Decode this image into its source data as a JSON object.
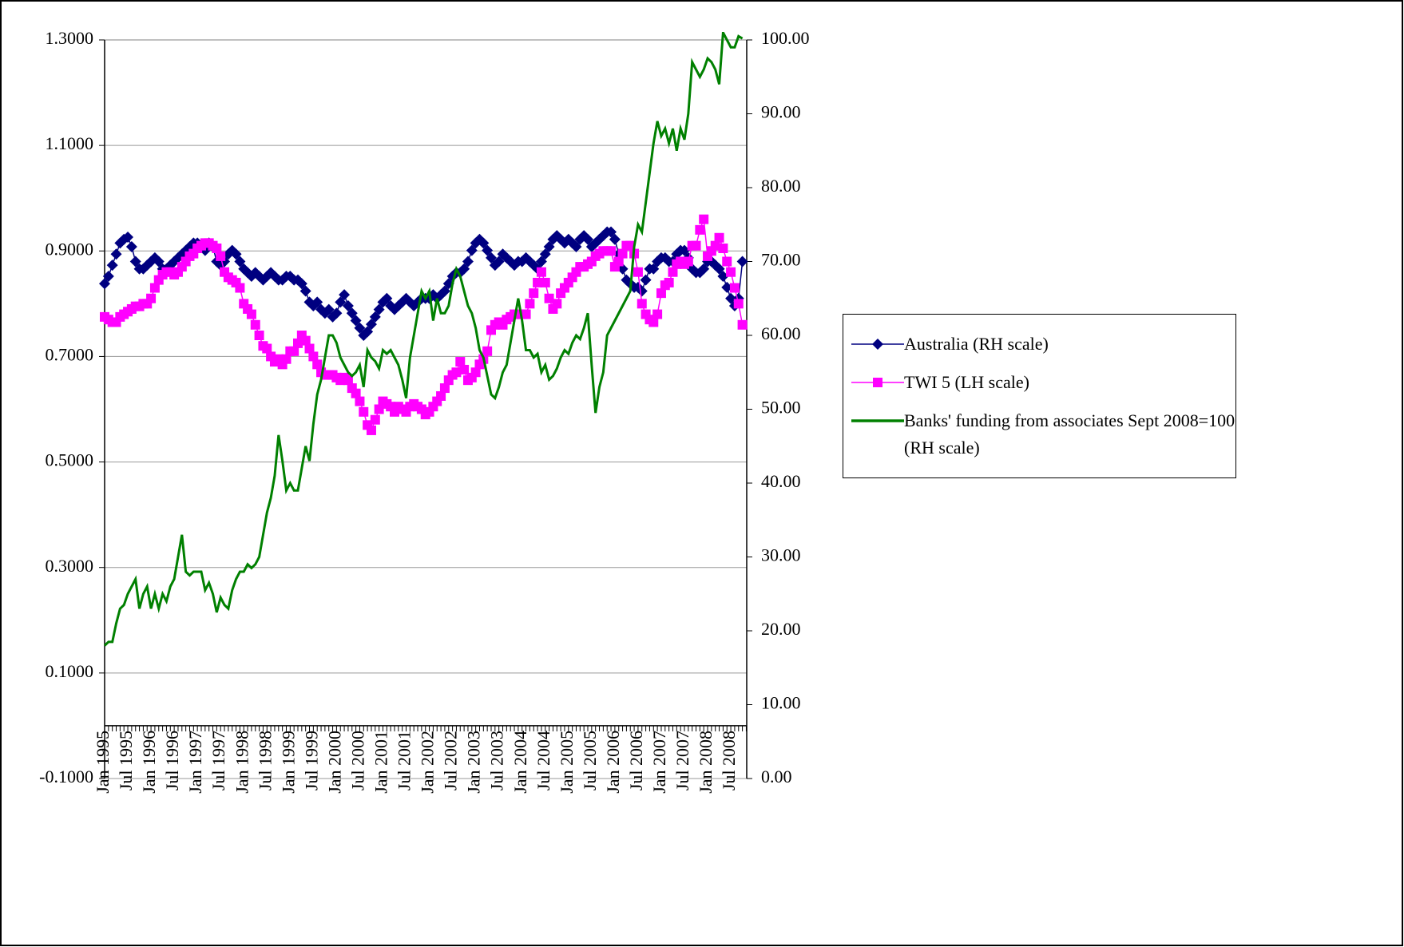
{
  "chart_data": {
    "type": "line",
    "categories": [
      "Jan 1995",
      null,
      null,
      null,
      null,
      null,
      "Jul 1995",
      null,
      null,
      null,
      null,
      null,
      "Jan 1996",
      null,
      null,
      null,
      null,
      null,
      "Jul 1996",
      null,
      null,
      null,
      null,
      null,
      "Jan 1997",
      null,
      null,
      null,
      null,
      null,
      "Jul 1997",
      null,
      null,
      null,
      null,
      null,
      "Jan 1998",
      null,
      null,
      null,
      null,
      null,
      "Jul 1998",
      null,
      null,
      null,
      null,
      null,
      "Jan 1999",
      null,
      null,
      null,
      null,
      null,
      "Jul 1999",
      null,
      null,
      null,
      null,
      null,
      "Jan 2000",
      null,
      null,
      null,
      null,
      null,
      "Jul 2000",
      null,
      null,
      null,
      null,
      null,
      "Jan 2001",
      null,
      null,
      null,
      null,
      null,
      "Jul 2001",
      null,
      null,
      null,
      null,
      null,
      "Jan 2002",
      null,
      null,
      null,
      null,
      null,
      "Jul 2002",
      null,
      null,
      null,
      null,
      null,
      "Jan 2003",
      null,
      null,
      null,
      null,
      null,
      "Jul 2003",
      null,
      null,
      null,
      null,
      null,
      "Jan 2004",
      null,
      null,
      null,
      null,
      null,
      "Jul 2004",
      null,
      null,
      null,
      null,
      null,
      "Jan 2005",
      null,
      null,
      null,
      null,
      null,
      "Jul 2005",
      null,
      null,
      null,
      null,
      null,
      "Jan 2006",
      null,
      null,
      null,
      null,
      null,
      "Jul 2006",
      null,
      null,
      null,
      null,
      null,
      "Jan 2007",
      null,
      null,
      null,
      null,
      null,
      "Jul 2007",
      null,
      null,
      null,
      null,
      null,
      "Jan 2008",
      null,
      null,
      null,
      null,
      null,
      "Jul 2008",
      null,
      null,
      null
    ],
    "series": [
      {
        "name": "Australia (RH scale)",
        "color": "#000080",
        "marker": "diamond",
        "axis": "y2",
        "values": [
          67,
          68,
          69.5,
          71,
          72.5,
          73,
          73.3,
          72,
          70,
          69,
          69,
          69.5,
          70,
          70.5,
          70,
          69,
          69,
          69.5,
          70,
          70.5,
          71,
          71.5,
          72,
          72.5,
          72.5,
          72,
          71.5,
          72.5,
          72,
          70,
          69.5,
          70,
          71,
          71.5,
          71,
          70,
          69,
          68.5,
          68,
          68.5,
          68,
          67.5,
          68,
          68.5,
          68,
          67.5,
          67.5,
          68,
          68,
          67.5,
          67.5,
          67,
          66,
          64.5,
          64,
          64.5,
          63.5,
          63,
          63.5,
          62.5,
          63,
          64.5,
          65.5,
          64,
          63,
          62,
          61,
          60,
          60.5,
          61.5,
          62.5,
          63.5,
          64.5,
          65,
          64,
          63.5,
          64,
          64.5,
          65,
          64.5,
          64,
          64.5,
          65,
          65,
          65,
          65.5,
          65,
          65.5,
          66,
          67,
          68,
          68.5,
          68.5,
          69,
          70,
          71.5,
          72.5,
          73,
          72.5,
          71.5,
          70.5,
          69.5,
          70,
          71,
          70.5,
          70,
          69.5,
          70,
          70,
          70.5,
          70,
          69.5,
          69,
          70,
          71,
          72,
          73,
          73.5,
          73,
          72.5,
          73,
          72.5,
          72,
          73,
          73.5,
          73,
          72,
          72.5,
          73,
          73.5,
          74,
          74,
          73,
          71,
          69,
          67.5,
          67,
          66.5,
          66.5,
          66,
          67.5,
          69,
          69,
          70,
          70.5,
          70.5,
          70,
          70,
          71,
          71.5,
          71.5,
          70.5,
          69,
          68.5,
          68.5,
          69,
          70,
          70,
          69.5,
          69,
          68,
          66.5,
          65,
          64,
          65,
          70
        ]
      },
      {
        "name": "TWI 5 (LH scale)",
        "color": "#ff00ff",
        "marker": "square",
        "values": [
          0.775,
          0.77,
          0.765,
          0.765,
          0.775,
          0.78,
          0.785,
          0.79,
          0.795,
          0.795,
          0.8,
          0.8,
          0.81,
          0.83,
          0.845,
          0.855,
          0.86,
          0.86,
          0.855,
          0.86,
          0.87,
          0.88,
          0.89,
          0.895,
          0.905,
          0.91,
          0.915,
          0.915,
          0.91,
          0.905,
          0.89,
          0.86,
          0.85,
          0.845,
          0.84,
          0.83,
          0.8,
          0.79,
          0.78,
          0.76,
          0.74,
          0.72,
          0.715,
          0.7,
          0.69,
          0.695,
          0.685,
          0.695,
          0.71,
          0.71,
          0.725,
          0.74,
          0.73,
          0.715,
          0.7,
          0.685,
          0.67,
          0.665,
          0.665,
          0.665,
          0.66,
          0.655,
          0.66,
          0.655,
          0.64,
          0.63,
          0.615,
          0.595,
          0.57,
          0.56,
          0.58,
          0.6,
          0.615,
          0.61,
          0.605,
          0.595,
          0.605,
          0.6,
          0.595,
          0.605,
          0.61,
          0.605,
          0.6,
          0.59,
          0.595,
          0.605,
          0.615,
          0.625,
          0.64,
          0.655,
          0.665,
          0.67,
          0.69,
          0.675,
          0.655,
          0.66,
          0.67,
          0.685,
          0.695,
          0.71,
          0.75,
          0.76,
          0.765,
          0.76,
          0.77,
          0.775,
          0.78,
          0.78,
          0.78,
          0.78,
          0.8,
          0.82,
          0.84,
          0.86,
          0.84,
          0.81,
          0.79,
          0.8,
          0.82,
          0.83,
          0.84,
          0.85,
          0.86,
          0.87,
          0.87,
          0.875,
          0.88,
          0.89,
          0.895,
          0.9,
          0.9,
          0.9,
          0.87,
          0.88,
          0.895,
          0.91,
          0.91,
          0.895,
          0.86,
          0.8,
          0.78,
          0.77,
          0.765,
          0.78,
          0.82,
          0.835,
          0.84,
          0.86,
          0.875,
          0.88,
          0.875,
          0.88,
          0.91,
          0.91,
          0.94,
          0.96,
          0.89,
          0.9,
          0.91,
          0.925,
          0.905,
          0.88,
          0.86,
          0.83,
          0.8,
          0.76
        ]
      },
      {
        "name": "Banks' funding from associates Sept 2008=100 (RH scale)",
        "color": "#008000",
        "marker": "none",
        "axis": "y2",
        "values": [
          18,
          18.5,
          18.5,
          21,
          23,
          23.5,
          25,
          26,
          27,
          23,
          25,
          26,
          23,
          25,
          23,
          25,
          24,
          26,
          27,
          30,
          33,
          28,
          27.5,
          28,
          28,
          28,
          25.5,
          26.5,
          25,
          22.5,
          24.5,
          23.5,
          23,
          25.5,
          27,
          28,
          28,
          29,
          28.5,
          29,
          30,
          33,
          36,
          38,
          41,
          46.5,
          43,
          39,
          40,
          39,
          39,
          42,
          45,
          43,
          48,
          52,
          54,
          57,
          60,
          60,
          59,
          57,
          56,
          55,
          54.5,
          55,
          56,
          53,
          58,
          57,
          56.5,
          55.5,
          58,
          57.5,
          58,
          57,
          56,
          54,
          51.5,
          57,
          60,
          63,
          66,
          65,
          66,
          62,
          65,
          63,
          63,
          64,
          67,
          69,
          68,
          66,
          64,
          63,
          61,
          58,
          57,
          54.5,
          52,
          51.5,
          53,
          55,
          56,
          59,
          62,
          65,
          62,
          58,
          58,
          57,
          57.5,
          55,
          56,
          54,
          54.5,
          55.5,
          57,
          58,
          57.5,
          59,
          60,
          59.5,
          61,
          63,
          56,
          49.5,
          53,
          55,
          60,
          61,
          62,
          63,
          64,
          65,
          66,
          72,
          75,
          74,
          78,
          82,
          86,
          89,
          87,
          88,
          86,
          88,
          85,
          88,
          86.5,
          90,
          97,
          96,
          95,
          96,
          97.5,
          97,
          96,
          94,
          101,
          100,
          99,
          99,
          100.5,
          100.2
        ]
      }
    ],
    "ylim": [
      -0.1,
      1.3
    ],
    "yticks": [
      {
        "value": -0.1,
        "label": "-0.1000"
      },
      {
        "value": 0.1,
        "label": "0.1000"
      },
      {
        "value": 0.3,
        "label": "0.3000"
      },
      {
        "value": 0.5,
        "label": "0.5000"
      },
      {
        "value": 0.7,
        "label": "0.7000"
      },
      {
        "value": 0.9,
        "label": "0.9000"
      },
      {
        "value": 1.1,
        "label": "1.1000"
      },
      {
        "value": 1.3,
        "label": "1.3000"
      }
    ],
    "y2lim": [
      0,
      100
    ],
    "y2ticks": [
      {
        "value": 0,
        "label": "0.00"
      },
      {
        "value": 10,
        "label": "10.00"
      },
      {
        "value": 20,
        "label": "20.00"
      },
      {
        "value": 30,
        "label": "30.00"
      },
      {
        "value": 40,
        "label": "40.00"
      },
      {
        "value": 50,
        "label": "50.00"
      },
      {
        "value": 60,
        "label": "60.00"
      },
      {
        "value": 70,
        "label": "70.00"
      },
      {
        "value": 80,
        "label": "80.00"
      },
      {
        "value": 90,
        "label": "90.00"
      },
      {
        "value": 100,
        "label": "100.00"
      }
    ],
    "grid": true,
    "legend": "right"
  }
}
